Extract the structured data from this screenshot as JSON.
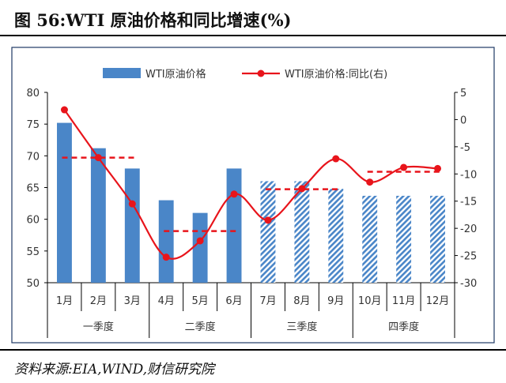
{
  "header": {
    "title": "图 56:WTI 原油价格和同比增速(%)"
  },
  "footer": {
    "source": "资料来源:EIA,WIND,财信研究院"
  },
  "chart_data": {
    "type": "bar",
    "categories": [
      "1月",
      "2月",
      "3月",
      "4月",
      "5月",
      "6月",
      "7月",
      "8月",
      "9月",
      "10月",
      "11月",
      "12月"
    ],
    "groups": [
      {
        "label": "一季度",
        "span": [
          0,
          2
        ]
      },
      {
        "label": "二季度",
        "span": [
          3,
          5
        ]
      },
      {
        "label": "三季度",
        "span": [
          6,
          8
        ]
      },
      {
        "label": "四季度",
        "span": [
          9,
          11
        ]
      }
    ],
    "series": [
      {
        "name": "WTI原油价格",
        "type": "bar",
        "axis": "left",
        "values": [
          75.2,
          71.2,
          68.0,
          63.0,
          61.0,
          68.0,
          66.0,
          66.0,
          64.8,
          63.7,
          63.7,
          63.7
        ],
        "hatched_from_index": 6
      },
      {
        "name": "WTI原油价格:同比(右)",
        "type": "line",
        "axis": "right",
        "values": [
          1.8,
          -7.0,
          -15.5,
          -25.3,
          -22.3,
          -13.7,
          -18.5,
          -12.7,
          -7.2,
          -11.5,
          -8.8,
          -9.0
        ]
      }
    ],
    "quarter_averages_right_axis": [
      -7.0,
      -20.5,
      -12.8,
      -9.6
    ],
    "left_axis": {
      "ylim": [
        50,
        80
      ],
      "ticks": [
        50,
        55,
        60,
        65,
        70,
        75,
        80
      ]
    },
    "right_axis": {
      "ylim": [
        -30,
        5
      ],
      "ticks": [
        -30,
        -25,
        -20,
        -15,
        -10,
        -5,
        0,
        5
      ]
    },
    "legend_position": "top-center",
    "colors": {
      "bar": "#4a86c8",
      "line": "#e8141b",
      "frame": "#1f3864"
    }
  }
}
